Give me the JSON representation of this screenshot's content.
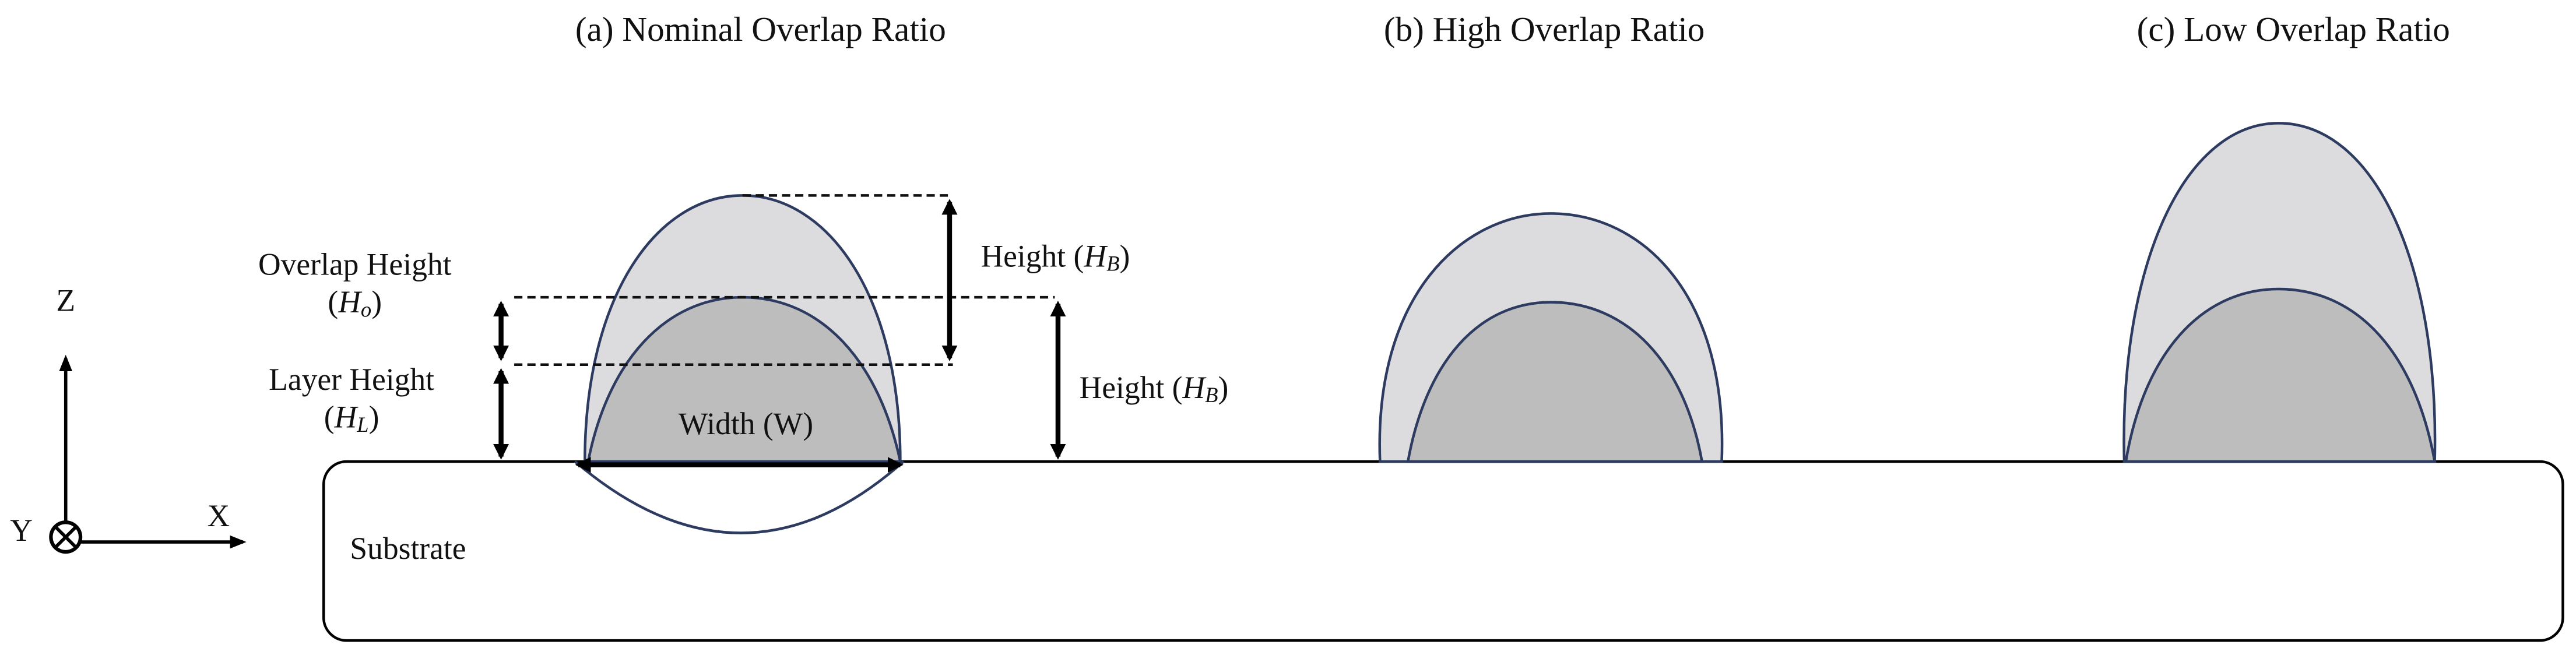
{
  "titles": [
    "(a) Nominal Overlap Ratio",
    "(b) High Overlap Ratio",
    "(c) Low Overlap Ratio"
  ],
  "axes": {
    "z": "Z",
    "x": "X",
    "y": "Y"
  },
  "substrate": "Substrate",
  "width_label": "Width (W)",
  "overlap_height": {
    "line1": "Overlap Height",
    "line2": [
      "(",
      "H",
      "o",
      ")"
    ]
  },
  "layer_height": {
    "line1": "Layer Height",
    "line2": [
      "(",
      "H",
      "L",
      ")"
    ]
  },
  "bead_height_upper": [
    "Height (",
    "H",
    "B",
    ")"
  ],
  "bead_height_right": [
    "Height (",
    "H",
    "B",
    ")"
  ]
}
